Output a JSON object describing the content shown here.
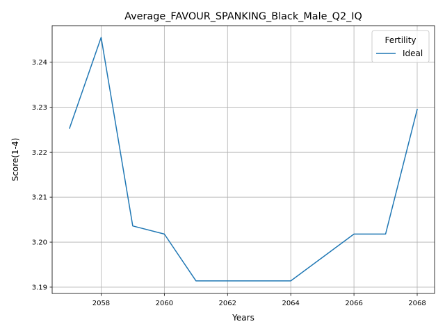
{
  "chart_data": {
    "type": "line",
    "title": "Average_FAVOUR_SPANKING_Black_Male_Q2_IQ",
    "xlabel": "Years",
    "ylabel": "Score(1-4)",
    "xlim": [
      2056.45,
      2068.55
    ],
    "ylim": [
      3.1886,
      3.2481
    ],
    "xticks": [
      2058,
      2060,
      2062,
      2064,
      2066,
      2068
    ],
    "yticks": [
      3.19,
      3.2,
      3.21,
      3.22,
      3.23,
      3.24
    ],
    "xtick_labels": [
      "2058",
      "2060",
      "2062",
      "2064",
      "2066",
      "2068"
    ],
    "ytick_labels": [
      "3.19",
      "3.20",
      "3.21",
      "3.22",
      "3.23",
      "3.24"
    ],
    "grid": true,
    "legend": {
      "title": "Fertility",
      "position": "top-right",
      "entries": [
        "Ideal"
      ]
    },
    "series": [
      {
        "name": "Ideal",
        "color": "#1f77b4",
        "x": [
          2057,
          2058,
          2059,
          2060,
          2061,
          2062,
          2063,
          2064,
          2065,
          2066,
          2067,
          2068
        ],
        "values": [
          3.2253,
          3.2455,
          3.2036,
          3.2018,
          3.1914,
          3.1914,
          3.1914,
          3.1914,
          3.1966,
          3.2018,
          3.2018,
          3.2295
        ]
      }
    ]
  }
}
